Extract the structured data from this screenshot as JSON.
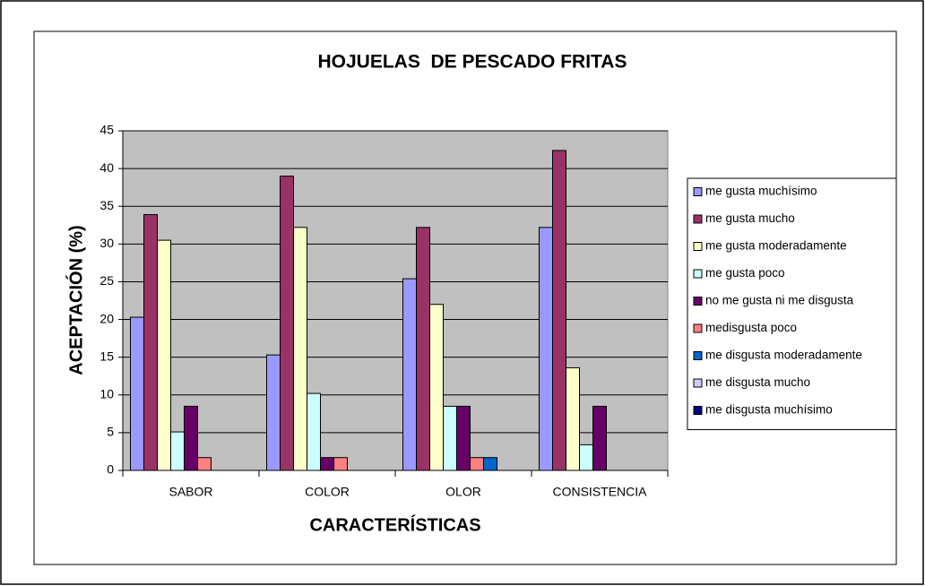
{
  "chart_data": {
    "type": "bar",
    "title": "HOJUELAS  DE PESCADO FRITAS",
    "x_label": "CARACTERÍSTICAS",
    "y_label": "ACEPTACIÓN (%)",
    "categories": [
      "SABOR",
      "COLOR",
      "OLOR",
      "CONSISTENCIA"
    ],
    "series": [
      {
        "name": "me gusta muchísimo",
        "color": "#9999ff",
        "values": [
          20.3,
          15.3,
          25.4,
          32.2
        ]
      },
      {
        "name": "me gusta mucho",
        "color": "#993366",
        "values": [
          33.9,
          39,
          32.2,
          42.4
        ]
      },
      {
        "name": "me gusta moderadamente",
        "color": "#ffffcc",
        "values": [
          30.5,
          32.2,
          22,
          13.6
        ]
      },
      {
        "name": "me gusta poco",
        "color": "#ccffff",
        "values": [
          5.1,
          10.2,
          8.5,
          3.4
        ]
      },
      {
        "name": "no me gusta ni me disgusta",
        "color": "#660066",
        "values": [
          8.5,
          1.7,
          8.5,
          8.5
        ]
      },
      {
        "name": "medisgusta poco",
        "color": "#ff8080",
        "values": [
          1.7,
          1.7,
          1.7,
          0
        ]
      },
      {
        "name": "me disgusta moderadamente",
        "color": "#0066cc",
        "values": [
          0,
          0,
          1.7,
          0
        ]
      },
      {
        "name": "me disgusta mucho",
        "color": "#ccccff",
        "values": [
          0,
          0,
          0,
          0
        ]
      },
      {
        "name": "me disgusta muchísimo",
        "color": "#000080",
        "values": [
          0,
          0,
          0,
          0
        ]
      }
    ],
    "ylim": [
      0,
      45
    ],
    "yticks": [
      0,
      5,
      10,
      15,
      20,
      25,
      30,
      35,
      40,
      45
    ],
    "grid": true,
    "legend": "right",
    "plot_background": "#c0c0c0"
  }
}
